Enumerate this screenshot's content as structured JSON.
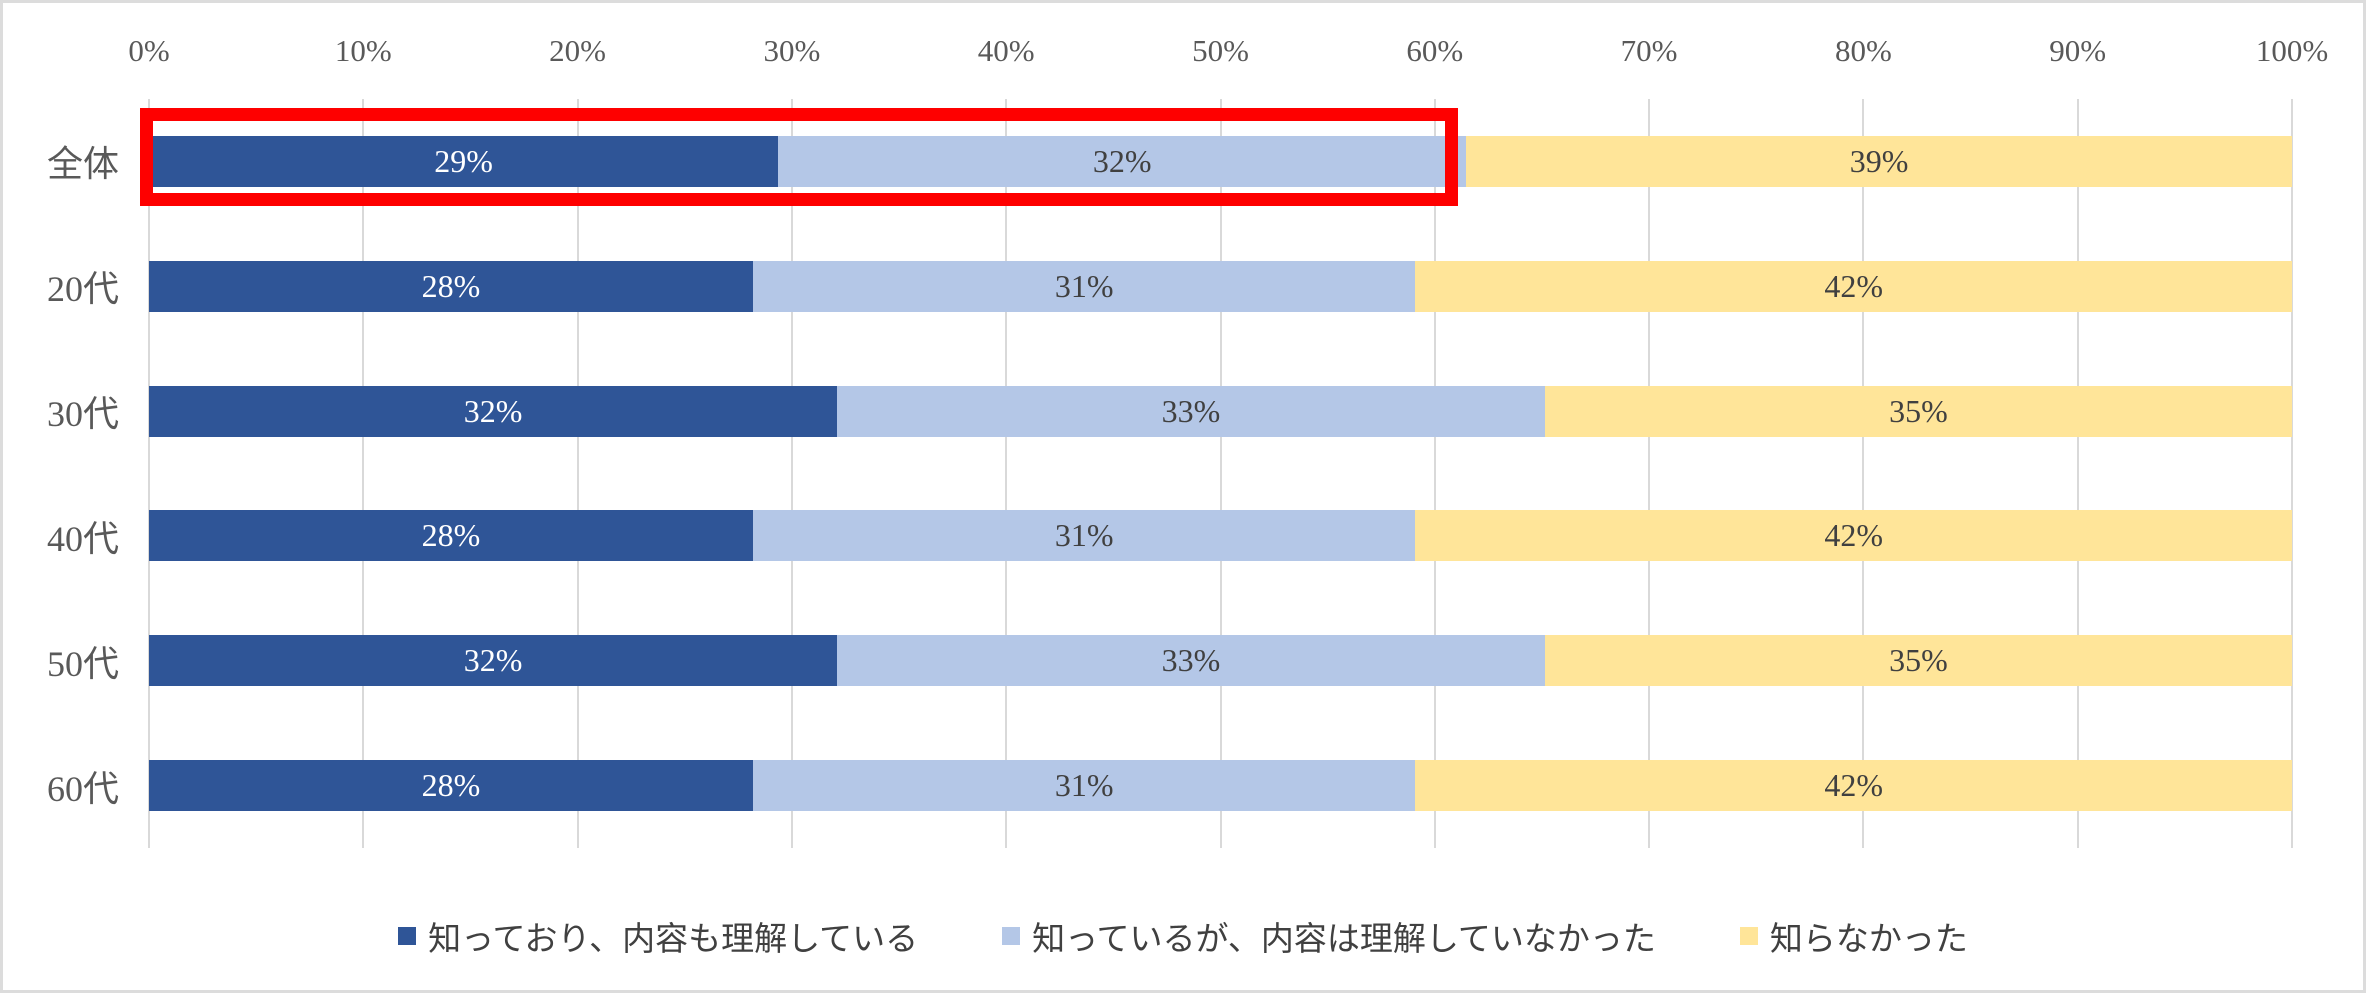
{
  "frame": {
    "background": "#FFFFFF",
    "border_color": "#DCDCDC"
  },
  "chart_data": {
    "type": "bar",
    "subtype": "horizontal-stacked-100percent",
    "title": "",
    "categories": [
      "全体",
      "20代",
      "30代",
      "40代",
      "50代",
      "60代"
    ],
    "series": [
      {
        "name": "知っており、内容も理解している",
        "color": "#2F5597",
        "label_color": "#FFFFFF",
        "values": [
          29,
          28,
          32,
          28,
          32,
          28
        ]
      },
      {
        "name": "知っているが、内容は理解していなかった",
        "color": "#B4C7E7",
        "label_color": "#404040",
        "values": [
          32,
          31,
          33,
          31,
          33,
          31
        ]
      },
      {
        "name": "知らなかった",
        "color": "#FFE599",
        "label_color": "#404040",
        "values": [
          39,
          42,
          35,
          42,
          35,
          42
        ]
      }
    ],
    "value_label_format": "{value}%",
    "x_axis": {
      "position": "top",
      "range": [
        0,
        100
      ],
      "ticks": [
        "0%",
        "10%",
        "20%",
        "30%",
        "40%",
        "50%",
        "60%",
        "70%",
        "80%",
        "90%",
        "100%"
      ],
      "tick_color": "#595959"
    },
    "category_label_color": "#595959",
    "grid": {
      "vertical": true,
      "horizontal": false,
      "color": "#D9D9D9"
    },
    "legend": {
      "position": "bottom"
    },
    "annotation": {
      "type": "highlight-box",
      "color": "#FE0000",
      "row_index": 0,
      "row_label": "全体",
      "covers": "first two segments of 全体 row",
      "range_percent": [
        0,
        61
      ]
    }
  }
}
